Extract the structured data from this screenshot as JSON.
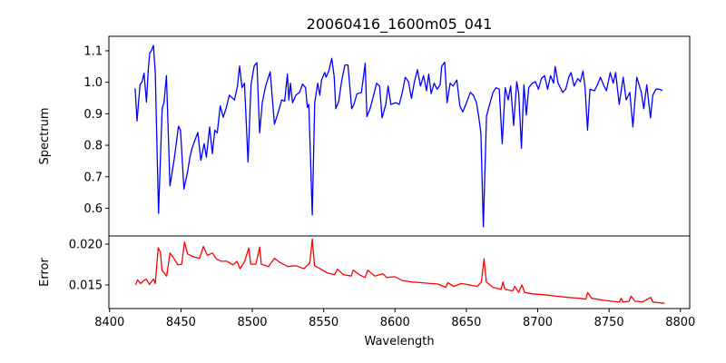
{
  "chart_data": [
    {
      "type": "line",
      "panel": "top",
      "title": "20060416_1600m05_041",
      "xlabel": "",
      "ylabel": "Spectrum",
      "xlim": [
        8399.5,
        8806.5
      ],
      "ylim": [
        0.512,
        1.146
      ],
      "yticks": [
        0.6,
        0.7,
        0.8,
        0.9,
        1.0,
        1.1
      ],
      "ytick_labels": [
        "0.6",
        "0.7",
        "0.8",
        "0.9",
        "1.0",
        "1.1"
      ],
      "grid": false,
      "series": [
        {
          "name": "spectrum",
          "color": "#0000ff",
          "x": [
            8417.9,
            8419.2,
            8421.3,
            8422.8,
            8424.1,
            8425.8,
            8427.1,
            8428.1,
            8429.2,
            8430.7,
            8432.0,
            8434.3,
            8436.8,
            8438.1,
            8439.8,
            8442.3,
            8445.3,
            8448.3,
            8449.7,
            8452.1,
            8454.6,
            8456.3,
            8457.8,
            8460.1,
            8461.8,
            8463.9,
            8466.3,
            8467.8,
            8470.1,
            8472.0,
            8473.7,
            8475.4,
            8477.5,
            8479.6,
            8481.8,
            8483.9,
            8487.5,
            8489.6,
            8491.1,
            8492.8,
            8494.5,
            8497.0,
            8499.1,
            8501.3,
            8503.2,
            8505.1,
            8507.0,
            8509.3,
            8512.5,
            8515.5,
            8518.2,
            8520.6,
            8522.7,
            8524.6,
            8525.6,
            8526.7,
            8528.2,
            8530.5,
            8533.1,
            8535.2,
            8537.3,
            8538.6,
            8539.6,
            8542.0,
            8543.7,
            8545.8,
            8547.3,
            8548.5,
            8550.7,
            8551.7,
            8553.6,
            8555.7,
            8557.4,
            8558.5,
            8560.6,
            8562.7,
            8564.9,
            8567.0,
            8569.7,
            8571.2,
            8573.3,
            8576.5,
            8579.1,
            8580.3,
            8582.5,
            8585.0,
            8587.1,
            8589.2,
            8590.9,
            8593.5,
            8595.2,
            8597.1,
            8600.5,
            8603.0,
            8605.1,
            8607.2,
            8609.4,
            8611.5,
            8613.6,
            8615.7,
            8617.8,
            8620.0,
            8622.1,
            8623.6,
            8625.3,
            8627.4,
            8629.5,
            8631.6,
            8632.7,
            8634.8,
            8636.5,
            8638.6,
            8640.7,
            8643.3,
            8645.4,
            8647.5,
            8649.6,
            8652.8,
            8654.9,
            8657.1,
            8658.8,
            8660.2,
            8661.9,
            8664.1,
            8666.6,
            8668.7,
            8670.8,
            8673.0,
            8675.1,
            8677.2,
            8679.3,
            8681.0,
            8683.1,
            8685.3,
            8686.7,
            8688.6,
            8690.3,
            8692.0,
            8693.7,
            8696.3,
            8698.4,
            8700.5,
            8702.6,
            8704.8,
            8706.9,
            8709.0,
            8711.1,
            8712.2,
            8714.3,
            8717.5,
            8719.6,
            8721.7,
            8723.4,
            8725.5,
            8728.1,
            8729.8,
            8731.7,
            8733.2,
            8734.9,
            8736.6,
            8739.7,
            8741.9,
            8744.0,
            8746.1,
            8748.2,
            8750.8,
            8752.9,
            8754.6,
            8757.1,
            8759.9,
            8762.0,
            8764.5,
            8766.7,
            8769.4,
            8772.6,
            8774.3,
            8776.4,
            8779.0,
            8780.6,
            8782.8,
            8785.3,
            8787.4
          ],
          "y": [
            0.981,
            0.877,
            0.992,
            1.002,
            1.029,
            0.937,
            1.04,
            1.093,
            1.1,
            1.117,
            1.031,
            0.584,
            0.917,
            0.935,
            1.021,
            0.671,
            0.757,
            0.86,
            0.848,
            0.661,
            0.714,
            0.762,
            0.791,
            0.82,
            0.841,
            0.752,
            0.805,
            0.762,
            0.858,
            0.773,
            0.848,
            0.839,
            0.925,
            0.889,
            0.92,
            0.959,
            0.944,
            0.988,
            1.052,
            0.983,
            0.997,
            0.747,
            0.992,
            1.052,
            1.062,
            0.839,
            0.935,
            0.988,
            1.033,
            0.867,
            0.906,
            0.944,
            0.94,
            1.026,
            0.944,
            0.997,
            0.935,
            0.959,
            0.968,
            0.994,
            0.983,
            0.92,
            0.93,
            0.579,
            0.935,
            0.997,
            0.959,
            1.007,
            1.031,
            1.016,
            1.036,
            1.076,
            1.016,
            0.916,
            0.94,
            1.007,
            1.055,
            1.055,
            0.916,
            0.93,
            0.963,
            0.968,
            1.06,
            0.891,
            0.916,
            0.959,
            0.997,
            0.988,
            0.887,
            0.93,
            0.988,
            0.93,
            0.935,
            0.93,
            0.968,
            1.016,
            1.002,
            0.949,
            1.002,
            1.04,
            0.988,
            1.021,
            0.973,
            1.026,
            0.964,
            0.997,
            0.978,
            0.992,
            1.05,
            1.064,
            0.935,
            0.997,
            0.988,
            1.007,
            0.925,
            0.906,
            0.93,
            0.968,
            0.959,
            0.935,
            0.887,
            0.839,
            0.541,
            0.892,
            0.935,
            0.968,
            0.983,
            0.978,
            0.805,
            0.983,
            0.944,
            0.988,
            0.863,
            1.002,
            0.964,
            0.791,
            0.992,
            0.896,
            0.983,
            0.997,
            1.002,
            0.978,
            1.012,
            1.021,
            0.978,
            1.021,
            0.997,
            1.05,
            0.997,
            0.968,
            0.978,
            1.016,
            1.031,
            0.988,
            1.012,
            1.002,
            1.036,
            0.983,
            0.848,
            0.978,
            0.973,
            0.992,
            1.016,
            0.992,
            0.973,
            1.031,
            0.997,
            1.031,
            0.93,
            1.016,
            0.944,
            0.968,
            0.858,
            1.016,
            0.968,
            0.916,
            0.992,
            0.887,
            0.959,
            0.978,
            0.978,
            0.973
          ]
        }
      ]
    },
    {
      "type": "line",
      "panel": "bottom",
      "xlabel": "Wavelength",
      "ylabel": "Error",
      "xlim": [
        8399.5,
        8806.5
      ],
      "ylim": [
        0.01211,
        0.021
      ],
      "xticks": [
        8400,
        8450,
        8500,
        8550,
        8600,
        8650,
        8700,
        8750,
        8800
      ],
      "xtick_labels": [
        "8400",
        "8450",
        "8500",
        "8550",
        "8600",
        "8650",
        "8700",
        "8750",
        "8800"
      ],
      "yticks": [
        0.015,
        0.02
      ],
      "ytick_labels": [
        "0.015",
        "0.020"
      ],
      "grid": false,
      "series": [
        {
          "name": "error",
          "color": "#ff0000",
          "x": [
            8418.2,
            8419.6,
            8421.8,
            8424.0,
            8425.7,
            8427.9,
            8430.7,
            8432.0,
            8434.0,
            8435.6,
            8436.7,
            8440.0,
            8442.3,
            8445.0,
            8447.8,
            8450.5,
            8452.5,
            8454.7,
            8458.8,
            8463.0,
            8465.7,
            8468.5,
            8472.1,
            8474.8,
            8478.2,
            8482.3,
            8486.5,
            8489.2,
            8491.4,
            8494.7,
            8497.5,
            8498.9,
            8502.5,
            8505.2,
            8506.3,
            8511.3,
            8515.5,
            8519.6,
            8525.1,
            8530.6,
            8536.2,
            8540.3,
            8542.0,
            8543.6,
            8548.6,
            8552.7,
            8557.7,
            8559.6,
            8563.8,
            8569.3,
            8570.7,
            8574.8,
            8579.0,
            8580.9,
            8585.9,
            8591.4,
            8594.2,
            8599.7,
            8605.2,
            8612.1,
            8617.6,
            8624.6,
            8630.1,
            8635.6,
            8637.0,
            8641.1,
            8646.6,
            8652.2,
            8657.7,
            8660.5,
            8662.4,
            8664.0,
            8668.7,
            8674.3,
            8675.6,
            8677.0,
            8682.5,
            8683.9,
            8686.6,
            8688.9,
            8690.8,
            8696.4,
            8704.6,
            8712.9,
            8721.2,
            8729.5,
            8733.7,
            8735.0,
            8737.8,
            8746.1,
            8751.6,
            8757.1,
            8758.5,
            8759.8,
            8764.0,
            8765.4,
            8768.1,
            8773.6,
            8779.2,
            8780.6,
            8788.9
          ],
          "y": [
            0.015,
            0.01562,
            0.01518,
            0.01554,
            0.01572,
            0.01507,
            0.01572,
            0.01518,
            0.01953,
            0.01899,
            0.01681,
            0.01609,
            0.01891,
            0.01826,
            0.01746,
            0.01754,
            0.02025,
            0.0188,
            0.01844,
            0.01826,
            0.01971,
            0.01862,
            0.01891,
            0.01819,
            0.0179,
            0.0179,
            0.01746,
            0.0179,
            0.01699,
            0.0179,
            0.01953,
            0.01754,
            0.01754,
            0.01964,
            0.01754,
            0.01725,
            0.01826,
            0.01772,
            0.01725,
            0.01736,
            0.01699,
            0.01772,
            0.02062,
            0.01736,
            0.01688,
            0.01645,
            0.01627,
            0.01692,
            0.01627,
            0.01609,
            0.01681,
            0.01627,
            0.01591,
            0.01681,
            0.01609,
            0.01638,
            0.01591,
            0.01601,
            0.01554,
            0.01536,
            0.01529,
            0.01518,
            0.01511,
            0.01471,
            0.01529,
            0.01482,
            0.01518,
            0.015,
            0.01482,
            0.01536,
            0.01819,
            0.01536,
            0.01471,
            0.01446,
            0.01536,
            0.01446,
            0.01428,
            0.01482,
            0.01409,
            0.015,
            0.01409,
            0.01391,
            0.0138,
            0.01362,
            0.01348,
            0.01337,
            0.01326,
            0.01409,
            0.01337,
            0.01312,
            0.01301,
            0.0129,
            0.01337,
            0.0129,
            0.01301,
            0.01362,
            0.01301,
            0.01293,
            0.01348,
            0.0129,
            0.01275
          ]
        }
      ]
    }
  ]
}
